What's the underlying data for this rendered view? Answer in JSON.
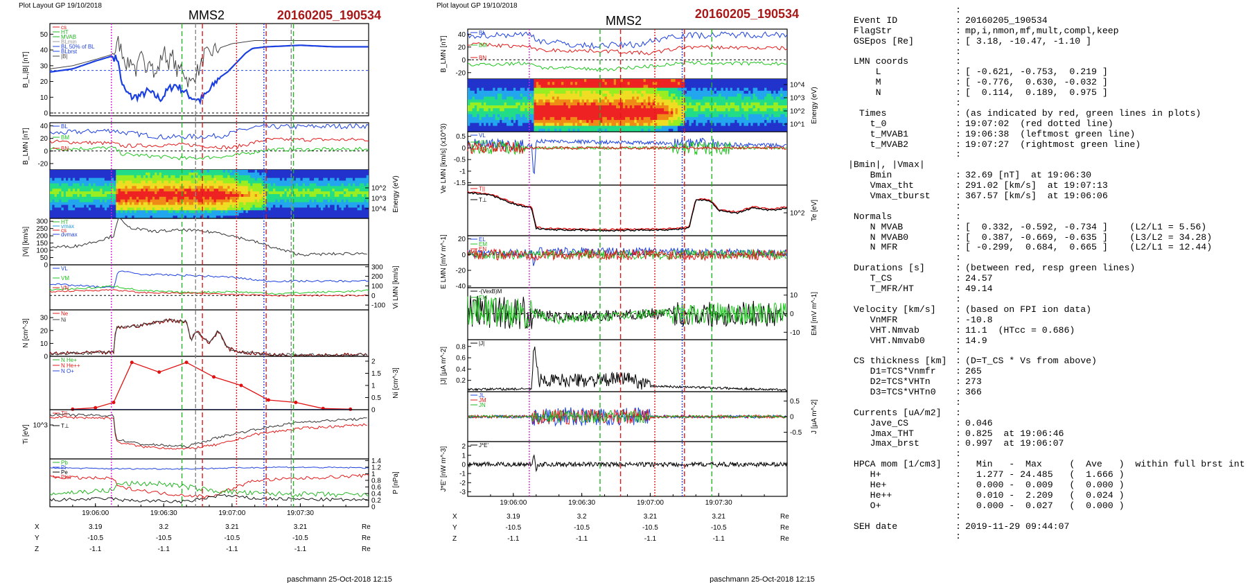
{
  "left": {
    "plot_layout": "Plot Layout GP 19/10/2018",
    "spacecraft": "MMS2",
    "event": "20160205_190534",
    "footer": "paschmann 25-Oct-2018 12:15"
  },
  "middle": {
    "plot_layout": "Plot layout GP 19/10/2018",
    "spacecraft": "MMS2",
    "event": "20160205_190534",
    "footer": "paschmann 25-Oct-2018 12:15"
  },
  "info_rows": [
    {
      "k": "",
      "c": ":",
      "v": ""
    },
    {
      "k": " Event ID",
      "c": ":",
      "v": "20160205_190534"
    },
    {
      "k": " FlagStr",
      "c": ":",
      "v": "mp,i,nmon,mf,mult,compl,keep"
    },
    {
      "k": " GSEpos [Re]",
      "c": ":",
      "v": "[ 3.18, -10.47, -1.10 ]"
    },
    {
      "k": "",
      "c": ":",
      "v": ""
    },
    {
      "k": " LMN coords",
      "c": ":",
      "v": ""
    },
    {
      "k": "     L",
      "c": ":",
      "v": "[ -0.621, -0.753,  0.219 ]"
    },
    {
      "k": "     M",
      "c": ":",
      "v": "[ -0.776,  0.630, -0.032 ]"
    },
    {
      "k": "     N",
      "c": ":",
      "v": "[  0.114,  0.189,  0.975 ]"
    },
    {
      "k": "",
      "c": ":",
      "v": ""
    },
    {
      "k": "  Times",
      "c": ":",
      "v": "(as indicated by red, green lines in plots)"
    },
    {
      "k": "    t_0",
      "c": ":",
      "v": "19:07:02  (red dotted line)"
    },
    {
      "k": "    t_MVAB1",
      "c": ":",
      "v": "19:06:38  (leftmost green line)"
    },
    {
      "k": "    t_MVAB2",
      "c": ":",
      "v": "19:07:27  (rightmost green line)"
    },
    {
      "k": "",
      "c": ":",
      "v": ""
    },
    {
      "k": "|Bmin|, |Vmax|",
      "c": "",
      "v": ""
    },
    {
      "k": "    Bmin",
      "c": ":",
      "v": "32.69 [nT]  at 19:06:30"
    },
    {
      "k": "    Vmax_tht",
      "c": ":",
      "v": "291.02 [km/s]  at 19:07:13"
    },
    {
      "k": "    Vmax_tburst",
      "c": ":",
      "v": "367.57 [km/s]  at 19:06:06"
    },
    {
      "k": "",
      "c": ":",
      "v": ""
    },
    {
      "k": " Normals",
      "c": ":",
      "v": ""
    },
    {
      "k": "    N MVAB",
      "c": ":",
      "v": "[  0.332, -0.592, -0.734 ]    (L2/L1 = 5.56)"
    },
    {
      "k": "    N MVAB0",
      "c": ":",
      "v": "[  0.387, -0.669, -0.635 ]    (L3/L2 = 34.28)"
    },
    {
      "k": "    N MFR",
      "c": ":",
      "v": "[ -0.299,  0.684,  0.665 ]    (L2/L1 = 12.44)"
    },
    {
      "k": "",
      "c": ":",
      "v": ""
    },
    {
      "k": " Durations [s]",
      "c": ":",
      "v": "(between red, resp green lines)"
    },
    {
      "k": "    T_CS",
      "c": ":",
      "v": "24.57"
    },
    {
      "k": "    T_MFR/HT",
      "c": ":",
      "v": "49.14"
    },
    {
      "k": "",
      "c": ":",
      "v": ""
    },
    {
      "k": " Velocity [km/s]",
      "c": ":",
      "v": "(based on FPI ion data)"
    },
    {
      "k": "    VnMFR",
      "c": ":",
      "v": "-10.8"
    },
    {
      "k": "    VHT.Nmvab",
      "c": ":",
      "v": "11.1  (HTcc = 0.686)"
    },
    {
      "k": "    VHT.Nmvab0",
      "c": ":",
      "v": "14.9"
    },
    {
      "k": "",
      "c": ":",
      "v": ""
    },
    {
      "k": " CS thickness [km]",
      "c": ":",
      "v": "(D=T_CS * Vs from above)"
    },
    {
      "k": "    D1=TCS*Vnmfr",
      "c": ":",
      "v": "265"
    },
    {
      "k": "    D2=TCS*VHTn",
      "c": ":",
      "v": "273"
    },
    {
      "k": "    D3=TCS*VHTn0",
      "c": ":",
      "v": "366"
    },
    {
      "k": "",
      "c": ":",
      "v": ""
    },
    {
      "k": " Currents [uA/m2]",
      "c": ":",
      "v": ""
    },
    {
      "k": "    Jave_CS",
      "c": ":",
      "v": "0.046"
    },
    {
      "k": "    Jmax_THT",
      "c": ":",
      "v": "0.825  at 19:06:46"
    },
    {
      "k": "    Jmax_brst",
      "c": ":",
      "v": "0.997  at 19:06:07"
    },
    {
      "k": "",
      "c": ":",
      "v": ""
    },
    {
      "k": " HPCA mom [1/cm3]",
      "c": ":",
      "v": "  Min   -  Max     (  Ave   )  within full brst int"
    },
    {
      "k": "    H+",
      "c": ":",
      "v": "  1.277 - 24.485   (  1.666 )"
    },
    {
      "k": "    He+",
      "c": ":",
      "v": "  0.000 -  0.009   (  0.000 )"
    },
    {
      "k": "    He++",
      "c": ":",
      "v": "  0.010 -  2.209   (  0.024 )"
    },
    {
      "k": "    O+",
      "c": ":",
      "v": "  0.000 -  0.027   (  0.000 )"
    },
    {
      "k": "",
      "c": ":",
      "v": ""
    },
    {
      "k": " SEH date",
      "c": ":",
      "v": "2019-11-29 09:44:07"
    },
    {
      "k": "",
      "c": ":",
      "v": ""
    }
  ],
  "chart_data": [
    {
      "id": "left",
      "type": "line",
      "time_range": [
        "19:05:40",
        "19:08:00"
      ],
      "time_ticks": [
        "19:06:00",
        "19:06:30",
        "19:07:00",
        "19:07:30"
      ],
      "markers": {
        "magenta_dotted": "19:06:07",
        "green_dashed": [
          "19:06:38",
          "19:07:27"
        ],
        "red_dashed": [
          "19:06:47",
          "19:07:15"
        ],
        "red_dotted": "19:07:02",
        "gray_dashed": [
          "19:06:44",
          "19:07:26"
        ],
        "blue_dotted": "19:07:14"
      },
      "panels": [
        {
          "ylabel": "B_L,|B| [nT]",
          "yticks": [
            0,
            10,
            20,
            30,
            40,
            50
          ],
          "legend": [
            "cs",
            "HT",
            "MVAB",
            "BLmin",
            "BL 50% of BL",
            "BLbrst",
            "|B|"
          ],
          "series": [
            {
              "name": "BL",
              "color": "#1a3fe0",
              "points": [
                [
                  0,
                  26
                ],
                [
                  10,
                  28
                ],
                [
                  20,
                  33
                ],
                [
                  27,
                  36
                ],
                [
                  30,
                  34
                ],
                [
                  31,
                  22
                ],
                [
                  33,
                  14
                ],
                [
                  36,
                  10
                ],
                [
                  40,
                  11
                ],
                [
                  43,
                  14
                ],
                [
                  46,
                  11
                ],
                [
                  49,
                  9
                ],
                [
                  52,
                  15
                ],
                [
                  55,
                  18
                ],
                [
                  58,
                  15
                ],
                [
                  62,
                  10
                ],
                [
                  66,
                  8
                ],
                [
                  70,
                  14
                ],
                [
                  74,
                  22
                ],
                [
                  78,
                  26
                ],
                [
                  82,
                  32
                ],
                [
                  86,
                  38
                ],
                [
                  89,
                  41
                ],
                [
                  95,
                  42
                ],
                [
                  110,
                  43
                ],
                [
                  125,
                  42
                ],
                [
                  140,
                  42
                ]
              ]
            },
            {
              "name": "|B|",
              "color": "#444444",
              "points": [
                [
                  0,
                  28
                ],
                [
                  10,
                  30
                ],
                [
                  20,
                  34
                ],
                [
                  27,
                  37
                ],
                [
                  29,
                  40
                ],
                [
                  30,
                  45
                ],
                [
                  32,
                  38
                ],
                [
                  34,
                  30
                ],
                [
                  36,
                  34
                ],
                [
                  38,
                  26
                ],
                [
                  40,
                  36
                ],
                [
                  42,
                  28
                ],
                [
                  44,
                  38
                ],
                [
                  46,
                  22
                ],
                [
                  48,
                  30
                ],
                [
                  50,
                  40
                ],
                [
                  52,
                  32
                ],
                [
                  54,
                  36
                ],
                [
                  56,
                  25
                ],
                [
                  58,
                  30
                ],
                [
                  60,
                  22
                ],
                [
                  62,
                  18
                ],
                [
                  64,
                  26
                ],
                [
                  66,
                  28
                ],
                [
                  68,
                  38
                ],
                [
                  70,
                  36
                ],
                [
                  72,
                  40
                ],
                [
                  76,
                  42
                ],
                [
                  80,
                  44
                ],
                [
                  85,
                  45
                ],
                [
                  90,
                  46
                ],
                [
                  100,
                  46
                ],
                [
                  120,
                  46
                ],
                [
                  140,
                  46
                ]
              ]
            }
          ],
          "ref_lines": [
            27,
            0
          ]
        },
        {
          "ylabel": "B_LMN [nT]",
          "yticks": [
            -20,
            0,
            20,
            40
          ],
          "legend": [
            "BL",
            "BM",
            "BN"
          ]
        },
        {
          "ylabel": "Energy (eV)",
          "yticks": [
            "10^2",
            "10^3",
            "10^4"
          ]
        },
        {
          "ylabel": "|Vi| [km/s]",
          "yticks": [
            0,
            50,
            100,
            150,
            200,
            250,
            300
          ],
          "legend": [
            "HT",
            "vmax",
            "cs",
            "dvmax"
          ]
        },
        {
          "ylabel": "Vi LMN [km/s]",
          "yticks": [
            -100,
            0,
            100,
            200,
            300
          ],
          "legend": [
            "VL",
            "VM",
            "VN"
          ]
        },
        {
          "ylabel": "N [cm^-3]",
          "yticks": [
            0,
            10,
            20,
            30
          ],
          "legend": [
            "Ne",
            "Ni"
          ]
        },
        {
          "ylabel": "Ni [cm^-3]",
          "yticks": [
            0.0,
            0.5,
            1.0,
            1.5,
            2.0
          ],
          "legend": [
            "N He+",
            "N He++",
            "N O+"
          ],
          "series": [
            {
              "name": "N He++",
              "color": "#e01010",
              "points": [
                [
                  10,
                  0.02
                ],
                [
                  20,
                  0.08
                ],
                [
                  28,
                  0.3
                ],
                [
                  36,
                  1.95
                ],
                [
                  48,
                  1.55
                ],
                [
                  60,
                  1.95
                ],
                [
                  72,
                  1.35
                ],
                [
                  84,
                  1.0
                ],
                [
                  96,
                  0.4
                ],
                [
                  108,
                  0.3
                ],
                [
                  120,
                  0.05
                ],
                [
                  132,
                  0.02
                ]
              ]
            }
          ]
        },
        {
          "ylabel": "Ti [eV]",
          "yticks": [
            "10^3"
          ],
          "legend": [
            "T||",
            "T⊥"
          ]
        },
        {
          "ylabel": "P [nPa]",
          "yticks": [
            0.0,
            0.2,
            0.4,
            0.6,
            0.8,
            1.0,
            1.2,
            1.4
          ],
          "legend": [
            "Pb",
            "Pi",
            "Pe",
            "Ptot"
          ]
        }
      ],
      "position_table": {
        "labels": [
          "X",
          "Y",
          "Z"
        ],
        "values": [
          [
            "3.19",
            "3.2",
            "3.21",
            "3.21"
          ],
          [
            "-10.5",
            "-10.5",
            "-10.5",
            "-10.5"
          ],
          [
            "-1.1",
            "-1.1",
            "-1.1",
            "-1.1"
          ]
        ],
        "unit": "Re"
      }
    },
    {
      "id": "middle",
      "type": "line",
      "time_range": [
        "19:05:40",
        "19:08:00"
      ],
      "time_ticks": [
        "19:06:00",
        "19:06:30",
        "19:07:00",
        "19:07:30"
      ],
      "markers": {
        "magenta_dotted": "19:06:07",
        "green_dashed": [
          "19:06:38",
          "19:07:27"
        ],
        "red_dashed": [
          "19:06:47",
          "19:07:15"
        ],
        "red_dotted": "19:07:02",
        "blue_dotted": "19:07:14"
      },
      "panels": [
        {
          "ylabel": "B_LMN [nT]",
          "yticks": [
            -20,
            0,
            20,
            40
          ],
          "legend": [
            "BL",
            "BM",
            "BN"
          ]
        },
        {
          "ylabel": "Energy (eV)",
          "yticks": [
            "10^1",
            "10^2",
            "10^3",
            "10^4"
          ]
        },
        {
          "ylabel": "Ve LMN [km/s] (x10^3)",
          "yticks": [
            -1.5,
            -1.0,
            -0.5,
            0.0,
            0.5
          ],
          "legend": [
            "VL",
            "VM",
            "VN"
          ]
        },
        {
          "ylabel": "Te [eV]",
          "yticks": [
            "10^2"
          ],
          "legend": [
            "T||",
            "T⊥"
          ],
          "series": [
            {
              "name": "T",
              "color": "#000000",
              "points": [
                [
                  0,
                  0.85
                ],
                [
                  10,
                  0.8
                ],
                [
                  22,
                  0.6
                ],
                [
                  28,
                  0.55
                ],
                [
                  30,
                  0.15
                ],
                [
                  35,
                  0.12
                ],
                [
                  60,
                  0.1
                ],
                [
                  90,
                  0.12
                ],
                [
                  97,
                  0.15
                ],
                [
                  100,
                  0.7
                ],
                [
                  106,
                  0.7
                ],
                [
                  110,
                  0.5
                ],
                [
                  118,
                  0.45
                ],
                [
                  125,
                  0.55
                ],
                [
                  133,
                  0.5
                ],
                [
                  140,
                  0.55
                ]
              ]
            }
          ]
        },
        {
          "ylabel": "E LMN [mV m^-1]",
          "yticks": [
            -40,
            -20,
            0,
            20
          ],
          "legend": [
            "EL",
            "EM",
            "EN"
          ]
        },
        {
          "ylabel": "EM [mV m^-1]",
          "yticks": [
            -10,
            0,
            10
          ],
          "legend": [
            "-(VexB)M",
            "EM"
          ]
        },
        {
          "ylabel": "|J| [µA m^-2]",
          "yticks": [
            0.2,
            0.4,
            0.6,
            0.8
          ],
          "legend": [
            "|J|"
          ]
        },
        {
          "ylabel": "J [µA m^-2]",
          "yticks": [
            -0.5,
            0.0,
            0.5
          ],
          "legend": [
            "JL",
            "JM",
            "JN"
          ]
        },
        {
          "ylabel": "J*E' [nW m^-3]",
          "yticks": [
            -3,
            -2,
            -1,
            0,
            1,
            2
          ],
          "legend": [
            "J*E'"
          ]
        }
      ],
      "position_table": {
        "labels": [
          "X",
          "Y",
          "Z"
        ],
        "values": [
          [
            "3.19",
            "3.2",
            "3.21",
            "3.21"
          ],
          [
            "-10.5",
            "-10.5",
            "-10.5",
            "-10.5"
          ],
          [
            "-1.1",
            "-1.1",
            "-1.1",
            "-1.1"
          ]
        ],
        "unit": "Re"
      }
    }
  ],
  "colors": {
    "bl": "#1a3fe0",
    "bm": "#1fc41f",
    "bn": "#e21818",
    "black": "#000000",
    "event": "#a81818",
    "magenta": "#dd22dd"
  }
}
